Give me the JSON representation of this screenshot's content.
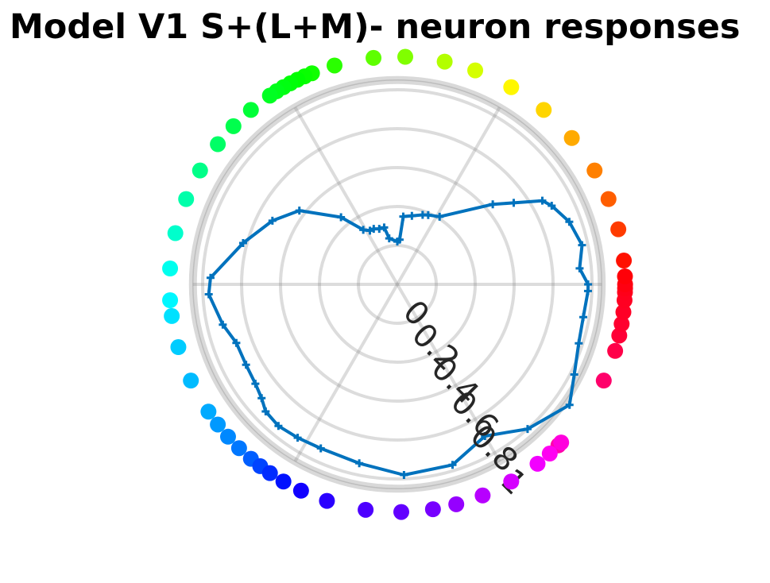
{
  "chart_data": {
    "type": "polar",
    "title": "Model V1 S+(L+M)- neuron responses",
    "r_ticks": [
      "0",
      "0.2",
      "0.4",
      "0.6",
      "0.8",
      "1"
    ],
    "r_range": [
      0,
      1
    ],
    "theta_unit": "degrees",
    "grid": true,
    "series": [
      {
        "type": "line",
        "color": "#0072BD",
        "theta_r": [
          [
            0,
            0.98
          ],
          [
            5,
            0.94
          ],
          [
            12,
            0.97
          ],
          [
            20,
            0.94
          ],
          [
            27,
            0.89
          ],
          [
            30,
            0.86
          ],
          [
            35,
            0.73
          ],
          [
            40,
            0.64
          ],
          [
            58,
            0.41
          ],
          [
            66,
            0.39
          ],
          [
            70,
            0.38
          ],
          [
            78,
            0.36
          ],
          [
            85,
            0.35
          ],
          [
            87,
            0.23
          ],
          [
            90,
            0.22
          ],
          [
            100,
            0.24
          ],
          [
            103,
            0.3
          ],
          [
            108,
            0.3
          ],
          [
            113,
            0.31
          ],
          [
            117,
            0.31
          ],
          [
            122,
            0.33
          ],
          [
            130,
            0.45
          ],
          [
            143,
            0.63
          ],
          [
            153,
            0.72
          ],
          [
            165,
            0.82
          ],
          [
            178,
            0.96
          ],
          [
            183,
            0.97
          ],
          [
            193,
            0.92
          ],
          [
            200,
            0.88
          ],
          [
            208,
            0.88
          ],
          [
            215,
            0.89
          ],
          [
            220,
            0.91
          ],
          [
            224,
            0.94
          ],
          [
            230,
            0.95
          ],
          [
            237,
            0.94
          ],
          [
            245,
            0.93
          ],
          [
            258,
            0.94
          ],
          [
            272,
            0.98
          ],
          [
            287,
            0.97
          ],
          [
            300,
            0.9
          ],
          [
            312,
            1.0
          ],
          [
            325,
            1.08
          ],
          [
            333,
            1.02
          ],
          [
            342,
            0.98
          ],
          [
            350,
            0.97
          ],
          [
            358,
            0.98
          ]
        ]
      },
      {
        "type": "scatter",
        "marker_ring": "outer",
        "hues": [
          320,
          335,
          343,
          347,
          349,
          351,
          352,
          353,
          354,
          356,
          358,
          4,
          14,
          22,
          30,
          40,
          50,
          58,
          70,
          78,
          90,
          98,
          110,
          116,
          118,
          120,
          122,
          124,
          126,
          128,
          133,
          138,
          144,
          152,
          160,
          168,
          176,
          182,
          187,
          192,
          196,
          200,
          204,
          208,
          212,
          218,
          224,
          230,
          236,
          244,
          250,
          258,
          263,
          268,
          275,
          283,
          290,
          297,
          303,
          308
        ],
        "angles": [
          315,
          335,
          343,
          347,
          350,
          353,
          356,
          358,
          359,
          0,
          2,
          6,
          14,
          22,
          30,
          40,
          50,
          60,
          70,
          78,
          88,
          96,
          106,
          112,
          114,
          116,
          118,
          120,
          122,
          124,
          130,
          136,
          142,
          150,
          158,
          167,
          176,
          184,
          188,
          196,
          205,
          214,
          218,
          222,
          226,
          230,
          233,
          236,
          240,
          245,
          252,
          262,
          271,
          279,
          285,
          292,
          300,
          308,
          312,
          316
        ]
      }
    ]
  }
}
